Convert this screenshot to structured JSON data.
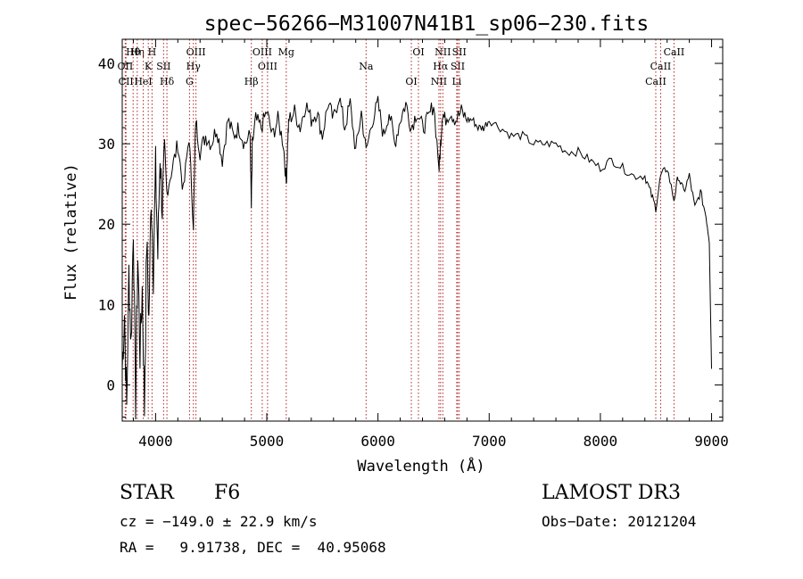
{
  "chart_data": {
    "type": "line",
    "title": "spec−56266−M31007N41B1_sp06−230.fits",
    "xlabel": "Wavelength (Å)",
    "ylabel": "Flux (relative)",
    "xlim": [
      3700,
      9100
    ],
    "ylim": [
      -4.5,
      43
    ],
    "xticks": [
      4000,
      5000,
      6000,
      7000,
      8000,
      9000
    ],
    "yticks": [
      0,
      10,
      20,
      30,
      40
    ],
    "series": [
      {
        "name": "flux",
        "x": [
          3700,
          3720,
          3740,
          3760,
          3780,
          3800,
          3820,
          3840,
          3860,
          3880,
          3900,
          3920,
          3940,
          3960,
          3980,
          4000,
          4020,
          4040,
          4060,
          4080,
          4100,
          4150,
          4200,
          4250,
          4300,
          4340,
          4360,
          4400,
          4450,
          4500,
          4550,
          4600,
          4650,
          4700,
          4750,
          4800,
          4850,
          4861,
          4870,
          4900,
          4950,
          5000,
          5050,
          5100,
          5150,
          5175,
          5190,
          5200,
          5250,
          5300,
          5350,
          5400,
          5450,
          5500,
          5550,
          5600,
          5650,
          5700,
          5750,
          5800,
          5850,
          5893,
          5950,
          6000,
          6050,
          6100,
          6150,
          6200,
          6250,
          6300,
          6350,
          6400,
          6450,
          6500,
          6550,
          6563,
          6580,
          6600,
          6650,
          6700,
          6750,
          6800,
          6850,
          6900,
          6950,
          7000,
          7100,
          7200,
          7300,
          7400,
          7500,
          7600,
          7700,
          7800,
          7900,
          8000,
          8100,
          8200,
          8300,
          8400,
          8450,
          8498,
          8542,
          8600,
          8662,
          8700,
          8750,
          8800,
          8850,
          8900,
          8950,
          8980,
          9000
        ],
        "y": [
          2,
          9,
          -3,
          14,
          5,
          20,
          -2,
          16,
          4,
          12,
          -3,
          18,
          8,
          24,
          14,
          27,
          16,
          29,
          22,
          28,
          24,
          27,
          30,
          24,
          31,
          20,
          33,
          29,
          31,
          30,
          32,
          28,
          33,
          31,
          32,
          30,
          31,
          22,
          30,
          33,
          32,
          34,
          31,
          33,
          30,
          25,
          31,
          33,
          34,
          32,
          35,
          33,
          34,
          31,
          35,
          33,
          36,
          32,
          35,
          29,
          34,
          29,
          33,
          35,
          31,
          34,
          30,
          33,
          35,
          32,
          34,
          32,
          33,
          35,
          27,
          30,
          34,
          33,
          34,
          33,
          34,
          33,
          33,
          32,
          32,
          33,
          32,
          31,
          31,
          30,
          30,
          30,
          29,
          29,
          28,
          27,
          28,
          27,
          26,
          26,
          24,
          22,
          26,
          27,
          23,
          26,
          24,
          26,
          22,
          24,
          21,
          18,
          2
        ]
      }
    ],
    "lines": [
      {
        "label": "Hθ",
        "wl": 3798
      },
      {
        "label": "OII",
        "wl": 3727
      },
      {
        "label": "CII",
        "wl": 3734
      },
      {
        "label": "Hη",
        "wl": 3835
      },
      {
        "label": "K",
        "wl": 3934
      },
      {
        "label": "HeI",
        "wl": 3889
      },
      {
        "label": "H",
        "wl": 3968
      },
      {
        "label": "SII",
        "wl": 4072
      },
      {
        "label": "Hδ",
        "wl": 4102
      },
      {
        "label": "OIII",
        "wl": 4363
      },
      {
        "label": "Hγ",
        "wl": 4340
      },
      {
        "label": "G",
        "wl": 4305
      },
      {
        "label": "OIII",
        "wl": 4959
      },
      {
        "label": "OIII",
        "wl": 5007
      },
      {
        "label": "Hβ",
        "wl": 4861
      },
      {
        "label": "Mg",
        "wl": 5175
      },
      {
        "label": "Na",
        "wl": 5893
      },
      {
        "label": "OI",
        "wl": 6300
      },
      {
        "label": "OI",
        "wl": 6364
      },
      {
        "label": "Hα",
        "wl": 6563
      },
      {
        "label": "NII",
        "wl": 6548
      },
      {
        "label": "NII",
        "wl": 6583
      },
      {
        "label": "SII",
        "wl": 6717
      },
      {
        "label": "Li",
        "wl": 6708
      },
      {
        "label": "SII",
        "wl": 6731
      },
      {
        "label": "CaII",
        "wl": 8542
      },
      {
        "label": "CaII",
        "wl": 8498
      },
      {
        "label": "CaII",
        "wl": 8662
      }
    ]
  },
  "info": {
    "class_label": "STAR",
    "subclass": "F6",
    "survey": "LAMOST DR3",
    "cz": "cz = −149.0 ± 22.9 km/s",
    "obs_date": "Obs−Date: 20121204",
    "radec": "RA =   9.91738, DEC =  40.95068"
  }
}
